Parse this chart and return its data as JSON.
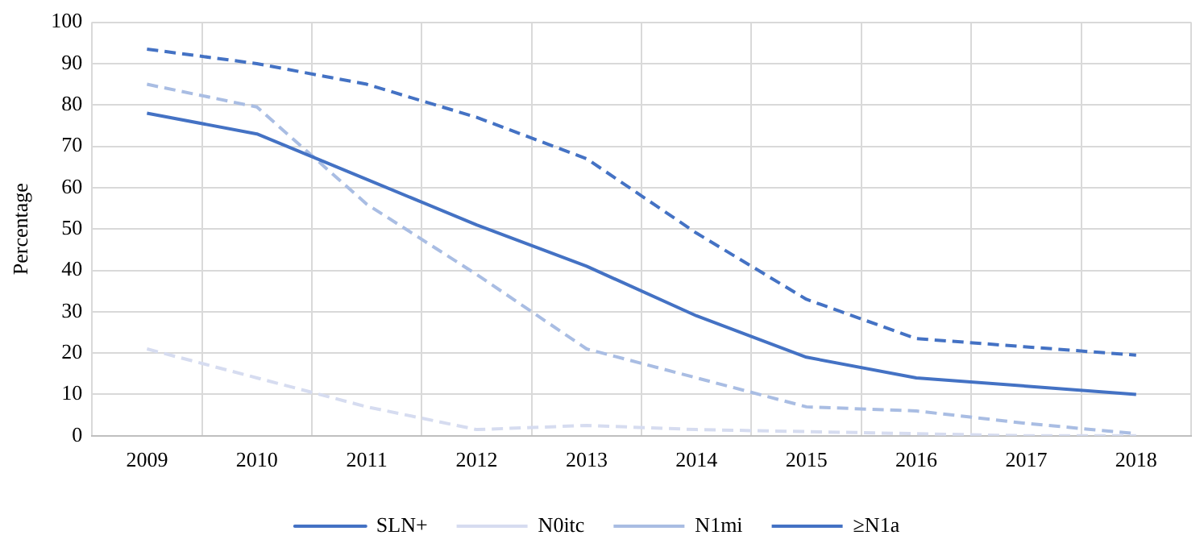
{
  "chart_data": {
    "type": "line",
    "ylabel": "Percentage",
    "categories": [
      "2009",
      "2010",
      "2011",
      "2012",
      "2013",
      "2014",
      "2015",
      "2016",
      "2017",
      "2018"
    ],
    "ylim": [
      0,
      100
    ],
    "yticks": [
      0,
      10,
      20,
      30,
      40,
      50,
      60,
      70,
      80,
      90,
      100
    ],
    "grid": true,
    "legend": "bottom",
    "marker": "none",
    "series": [
      {
        "name": "SLN+",
        "color": "#4472c4",
        "line_style": "solid",
        "values": [
          78,
          73,
          62,
          51,
          41,
          29,
          19,
          14,
          12,
          10
        ]
      },
      {
        "name": "N0itc",
        "color": "#d6dcf0",
        "line_style": "dashed",
        "values": [
          21,
          14,
          7,
          1.5,
          2.5,
          1.5,
          1,
          0.5,
          0,
          0
        ]
      },
      {
        "name": "N1mi",
        "color": "#a9bde3",
        "line_style": "dashed",
        "values": [
          85,
          79.5,
          56,
          39,
          21,
          14,
          7,
          6,
          3,
          0.5
        ]
      },
      {
        "name": "≥N1a",
        "color": "#4472c4",
        "line_style": "dashed",
        "values": [
          93.5,
          90,
          85,
          77,
          67,
          49,
          33,
          23.5,
          21.5,
          19.5
        ]
      }
    ]
  }
}
